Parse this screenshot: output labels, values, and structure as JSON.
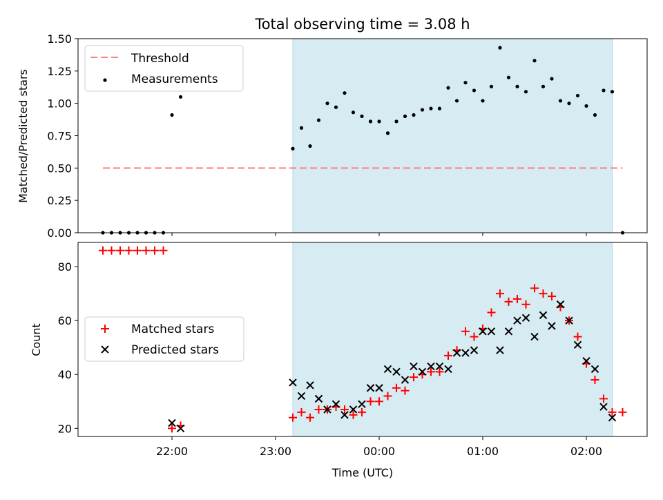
{
  "colors": {
    "shade": "#add8e6",
    "threshold": "#ff8080",
    "matched": "#ff0000",
    "predicted": "#000000",
    "measurement": "#000000"
  },
  "chart_data": [
    {
      "type": "scatter",
      "title": "Total observing time = 3.08 h",
      "xlabel": "",
      "ylabel": "Matched/Predicted stars",
      "ylim": [
        0,
        1.5
      ],
      "yticks": [
        "0.00",
        "0.25",
        "0.50",
        "0.75",
        "1.00",
        "1.25",
        "1.50"
      ],
      "legend_position": "top-left",
      "shaded_span": [
        "23:10",
        "02:15"
      ],
      "threshold": {
        "name": "Threshold",
        "value": 0.5,
        "x_range": [
          "21:20",
          "02:21"
        ]
      },
      "series": [
        {
          "name": "Measurements",
          "x": [
            "21:20",
            "21:25",
            "21:30",
            "21:35",
            "21:40",
            "21:45",
            "21:50",
            "21:55",
            "22:00",
            "22:05",
            "23:10",
            "23:15",
            "23:20",
            "23:25",
            "23:30",
            "23:35",
            "23:40",
            "23:45",
            "23:50",
            "23:55",
            "00:00",
            "00:05",
            "00:10",
            "00:15",
            "00:20",
            "00:25",
            "00:30",
            "00:35",
            "00:40",
            "00:45",
            "00:50",
            "00:55",
            "01:00",
            "01:05",
            "01:10",
            "01:15",
            "01:20",
            "01:25",
            "01:30",
            "01:35",
            "01:40",
            "01:45",
            "01:50",
            "01:55",
            "02:00",
            "02:05",
            "02:10",
            "02:15",
            "02:21"
          ],
          "y": [
            0,
            0,
            0,
            0,
            0,
            0,
            0,
            0,
            0.91,
            1.05,
            0.65,
            0.81,
            0.67,
            0.87,
            1.0,
            0.97,
            1.08,
            0.93,
            0.9,
            0.86,
            0.86,
            0.77,
            0.86,
            0.9,
            0.91,
            0.95,
            0.96,
            0.96,
            1.12,
            1.02,
            1.16,
            1.1,
            1.02,
            1.13,
            1.43,
            1.2,
            1.13,
            1.09,
            1.33,
            1.13,
            1.19,
            1.02,
            1.0,
            1.06,
            0.98,
            0.91,
            1.1,
            1.09,
            0
          ]
        }
      ]
    },
    {
      "type": "scatter",
      "title": "",
      "xlabel": "Time (UTC)",
      "ylabel": "Count",
      "xticks": [
        "22:00",
        "23:00",
        "00:00",
        "01:00",
        "02:00"
      ],
      "yticks": [
        "20",
        "40",
        "60",
        "80"
      ],
      "ylim": [
        17,
        89
      ],
      "legend_position": "center-left",
      "shaded_span": [
        "23:10",
        "02:15"
      ],
      "series": [
        {
          "name": "Matched stars",
          "marker": "+",
          "x": [
            "21:20",
            "21:25",
            "21:30",
            "21:35",
            "21:40",
            "21:45",
            "21:50",
            "21:55",
            "22:00",
            "22:05",
            "23:10",
            "23:15",
            "23:20",
            "23:25",
            "23:30",
            "23:35",
            "23:40",
            "23:45",
            "23:50",
            "23:55",
            "00:00",
            "00:05",
            "00:10",
            "00:15",
            "00:20",
            "00:25",
            "00:30",
            "00:35",
            "00:40",
            "00:45",
            "00:50",
            "00:55",
            "01:00",
            "01:05",
            "01:10",
            "01:15",
            "01:20",
            "01:25",
            "01:30",
            "01:35",
            "01:40",
            "01:45",
            "01:50",
            "01:55",
            "02:00",
            "02:05",
            "02:10",
            "02:15",
            "02:21"
          ],
          "y": [
            86,
            86,
            86,
            86,
            86,
            86,
            86,
            86,
            20,
            21,
            24,
            26,
            24,
            27,
            27,
            28,
            27,
            25,
            26,
            30,
            30,
            32,
            35,
            34,
            39,
            40,
            41,
            41,
            47,
            49,
            56,
            54,
            57,
            63,
            70,
            67,
            68,
            66,
            72,
            70,
            69,
            65,
            60,
            54,
            44,
            38,
            31,
            26,
            26
          ]
        },
        {
          "name": "Predicted stars",
          "marker": "x",
          "x": [
            "22:00",
            "22:05",
            "23:10",
            "23:15",
            "23:20",
            "23:25",
            "23:30",
            "23:35",
            "23:40",
            "23:45",
            "23:50",
            "23:55",
            "00:00",
            "00:05",
            "00:10",
            "00:15",
            "00:20",
            "00:25",
            "00:30",
            "00:35",
            "00:40",
            "00:45",
            "00:50",
            "00:55",
            "01:00",
            "01:05",
            "01:10",
            "01:15",
            "01:20",
            "01:25",
            "01:30",
            "01:35",
            "01:40",
            "01:45",
            "01:50",
            "01:55",
            "02:00",
            "02:05",
            "02:10",
            "02:15"
          ],
          "y": [
            22,
            20,
            37,
            32,
            36,
            31,
            27,
            29,
            25,
            27,
            29,
            35,
            35,
            42,
            41,
            38,
            43,
            41,
            43,
            43,
            42,
            48,
            48,
            49,
            56,
            56,
            49,
            56,
            60,
            61,
            54,
            62,
            58,
            66,
            60,
            51,
            45,
            42,
            28,
            24
          ]
        }
      ]
    }
  ]
}
